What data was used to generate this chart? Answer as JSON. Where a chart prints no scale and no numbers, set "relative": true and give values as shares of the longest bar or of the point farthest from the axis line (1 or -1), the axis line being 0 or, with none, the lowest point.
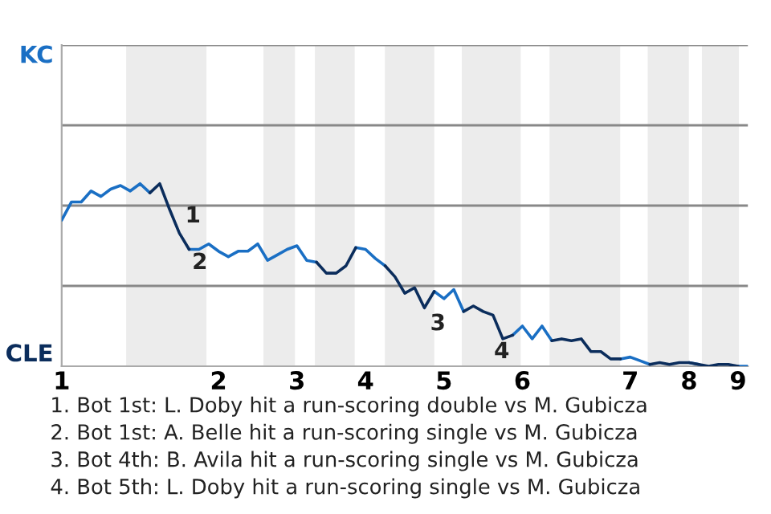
{
  "chart_data": {
    "type": "line",
    "relative": true,
    "categories": [
      "1",
      null,
      null,
      null,
      null,
      null,
      null,
      null,
      null,
      null,
      null,
      null,
      null,
      null,
      null,
      null,
      "2",
      null,
      null,
      null,
      null,
      null,
      null,
      null,
      "3",
      null,
      null,
      null,
      null,
      null,
      null,
      "4",
      null,
      null,
      null,
      null,
      null,
      null,
      null,
      "5",
      null,
      null,
      null,
      null,
      null,
      null,
      null,
      "6",
      null,
      null,
      null,
      null,
      null,
      null,
      null,
      null,
      null,
      null,
      "7",
      null,
      null,
      null,
      null,
      null,
      "8",
      null,
      null,
      null,
      null,
      "9",
      null
    ],
    "series": [
      {
        "color": "#1a6fc4",
        "values": [
          0.8,
          0.9,
          0.9,
          0.96,
          0.93,
          0.97,
          0.99,
          0.96,
          1.0,
          0.95,
          null,
          null,
          null,
          0.64,
          0.64,
          0.67,
          0.63,
          0.6,
          0.63,
          0.63,
          0.67,
          0.58,
          0.61,
          0.64,
          0.66,
          0.58,
          0.57,
          null,
          null,
          null,
          0.65,
          0.64,
          0.59,
          0.55,
          null,
          null,
          null,
          null,
          0.41,
          0.37,
          0.42,
          0.3,
          null,
          null,
          null,
          null,
          0.17,
          0.22,
          0.15,
          0.22,
          0.14,
          null,
          null,
          null,
          null,
          null,
          null,
          0.04,
          0.05,
          0.03,
          0.01,
          null,
          null,
          null,
          0.02,
          0.01,
          null,
          null,
          null,
          0,
          0
        ]
      },
      {
        "color": "#0b2d5c",
        "values": [
          null,
          null,
          null,
          null,
          null,
          null,
          null,
          null,
          null,
          0.95,
          1,
          0.86,
          0.73,
          0.64,
          null,
          null,
          null,
          null,
          null,
          null,
          null,
          null,
          null,
          null,
          null,
          null,
          0.57,
          0.51,
          0.51,
          0.55,
          0.65,
          null,
          null,
          0.55,
          0.49,
          0.4,
          0.43,
          0.32,
          0.41,
          null,
          null,
          0.3,
          0.33,
          0.3,
          0.28,
          0.15,
          0.17,
          null,
          null,
          null,
          0.14,
          0.15,
          0.14,
          0.15,
          0.08,
          0.08,
          0.04,
          0.04,
          null,
          null,
          0.01,
          0.02,
          0.01,
          0.02,
          0.02,
          0.01,
          0,
          0.01,
          0.01,
          0,
          null
        ]
      }
    ],
    "ref_lines": [
      {
        "axis": "y",
        "value": 0.44,
        "color": "#888888"
      },
      {
        "axis": "y",
        "value": 0.88,
        "color": "#888888"
      },
      {
        "axis": "y",
        "value": 1.32,
        "color": "#888888"
      },
      {
        "axis": "y",
        "value": 1.76,
        "color": "#888888"
      }
    ],
    "annotations": [
      "KC",
      "CLE",
      "1",
      "2",
      "3",
      "4",
      "1. Bot 1st: L. Doby hit a run-scoring double vs M. Gubicza",
      "2. Bot 1st: A. Belle hit a run-scoring single vs M. Gubicza",
      "3. Bot 4th: B. Avila hit a run-scoring single vs M. Gubicza",
      "4. Bot 5th: L. Doby hit a run-scoring single vs M. Gubicza"
    ],
    "marker": "none",
    "line_style": "solid"
  }
}
